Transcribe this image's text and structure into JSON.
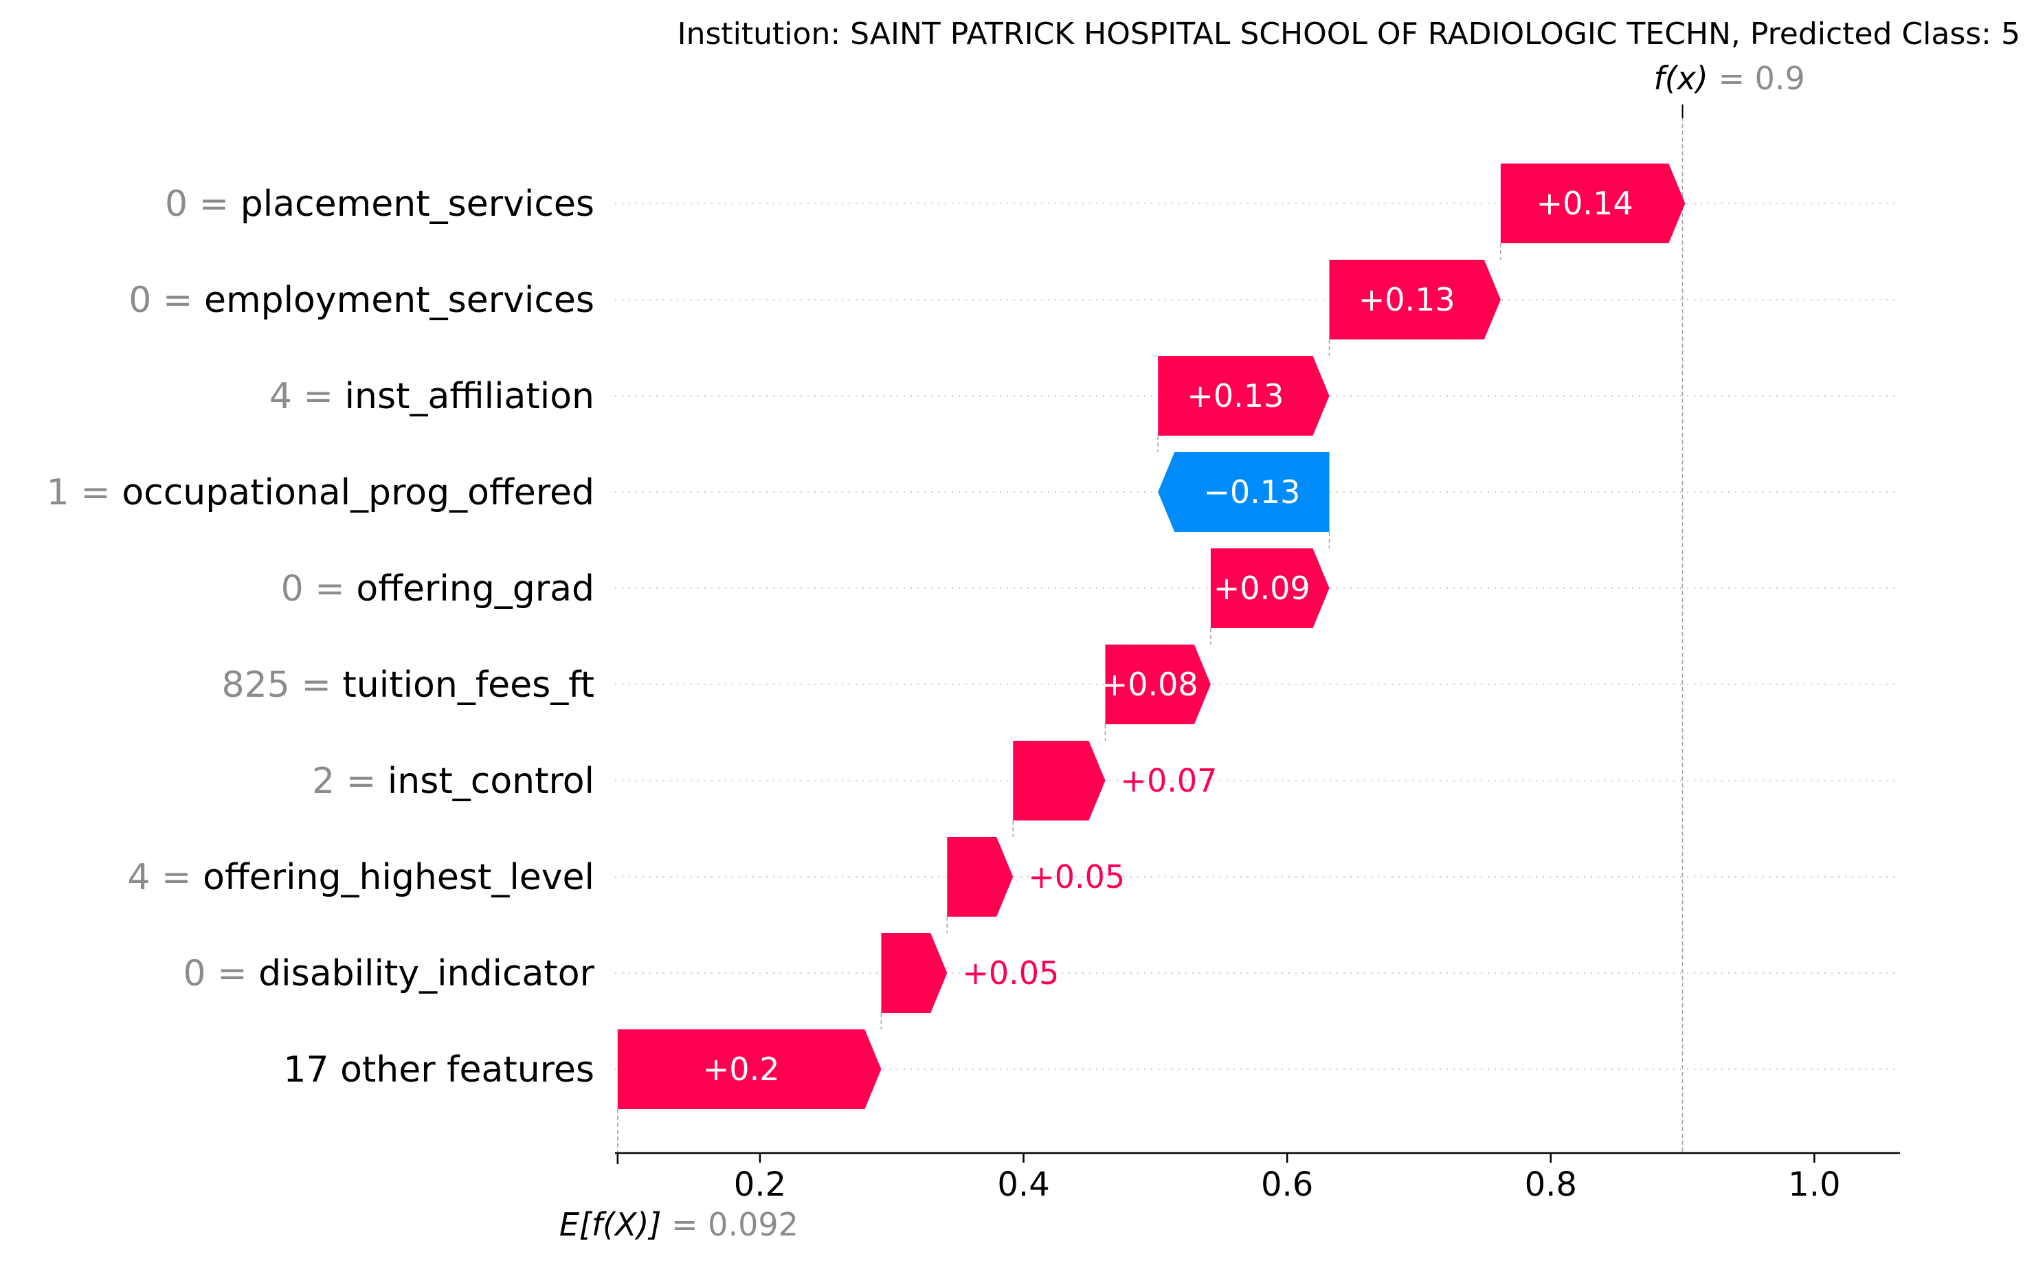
{
  "chart_data": {
    "type": "waterfall",
    "title": "Institution: SAINT PATRICK HOSPITAL SCHOOL OF RADIOLOGIC TECHN, Predicted Class: 5",
    "base_value": 0.092,
    "base_label": "E[f(X)]",
    "base_value_text": "= 0.092",
    "output_value": 0.9,
    "output_label": "f(x)",
    "output_value_text": "= 0.9",
    "xlim": [
      0.09,
      1.065
    ],
    "xticks": [
      0.2,
      0.4,
      0.6,
      0.8,
      1.0
    ],
    "xtick_labels": [
      "0.2",
      "0.4",
      "0.6",
      "0.8",
      "1.0"
    ],
    "colors": {
      "positive": "#ff0051",
      "negative": "#008bfb",
      "grid": "#cccccc",
      "value_text": "#8c8c8c"
    },
    "features": [
      {
        "value": "0",
        "name": "placement_services",
        "contribution": 0.14,
        "label": "+0.14"
      },
      {
        "value": "0",
        "name": "employment_services",
        "contribution": 0.13,
        "label": "+0.13"
      },
      {
        "value": "4",
        "name": "inst_affiliation",
        "contribution": 0.13,
        "label": "+0.13"
      },
      {
        "value": "1",
        "name": "occupational_prog_offered",
        "contribution": -0.13,
        "label": "−0.13"
      },
      {
        "value": "0",
        "name": "offering_grad",
        "contribution": 0.09,
        "label": "+0.09"
      },
      {
        "value": "825",
        "name": "tuition_fees_ft",
        "contribution": 0.08,
        "label": "+0.08"
      },
      {
        "value": "2",
        "name": "inst_control",
        "contribution": 0.07,
        "label": "+0.07"
      },
      {
        "value": "4",
        "name": "offering_highest_level",
        "contribution": 0.05,
        "label": "+0.05"
      },
      {
        "value": "0",
        "name": "disability_indicator",
        "contribution": 0.05,
        "label": "+0.05"
      },
      {
        "value": "",
        "name": "17 other features",
        "contribution": 0.2,
        "label": "+0.2"
      }
    ]
  }
}
